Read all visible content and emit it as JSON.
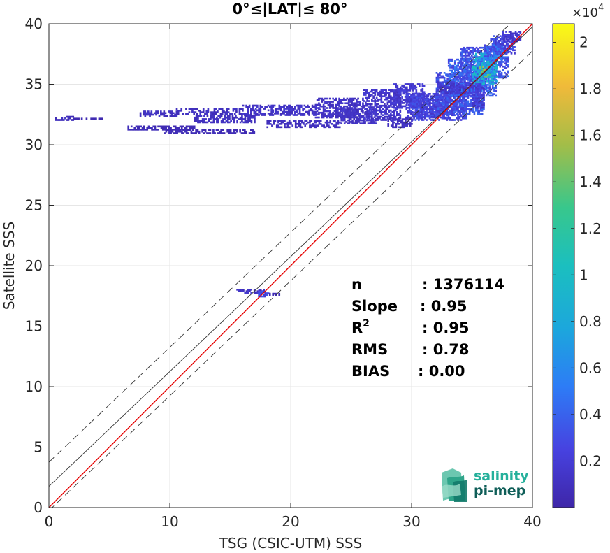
{
  "chart_data": {
    "type": "heatmap",
    "title": "0°≤|LAT|≤ 80°",
    "xlabel": "TSG (CSIC-UTM) SSS",
    "ylabel": "Satellite SSS",
    "xlim": [
      0,
      40
    ],
    "ylim": [
      0,
      40
    ],
    "xticks": [
      "0",
      "10",
      "20",
      "30",
      "40"
    ],
    "yticks": [
      "0",
      "5",
      "10",
      "15",
      "20",
      "25",
      "30",
      "35",
      "40"
    ],
    "grid": true,
    "colorbar": {
      "min": 0,
      "max": 20800,
      "multiplier_label": "×10",
      "multiplier_exp": "4",
      "ticks": [
        "0.2",
        "0.4",
        "0.6",
        "0.8",
        "1",
        "1.2",
        "1.4",
        "1.6",
        "1.8",
        "2"
      ]
    },
    "lines": [
      {
        "role": "one-to-one",
        "color": "#e60000",
        "slope": 1.0,
        "intercept": 0.0,
        "style": "solid"
      },
      {
        "role": "regression",
        "color": "#333333",
        "slope": 0.95,
        "intercept": 1.75,
        "style": "solid"
      },
      {
        "role": "upper-bound",
        "color": "#333333",
        "slope": 0.95,
        "intercept": 3.75,
        "style": "dashed"
      },
      {
        "role": "lower-bound",
        "color": "#333333",
        "slope": 0.95,
        "intercept": -0.25,
        "style": "dashed"
      }
    ],
    "density_regions": [
      {
        "x": [
          0.5,
          2.0
        ],
        "y": [
          32.0,
          32.3
        ],
        "density": 0.04
      },
      {
        "x": [
          2.0,
          4.5
        ],
        "y": [
          32.1,
          32.2
        ],
        "density": 0.02
      },
      {
        "x": [
          7.5,
          10.5
        ],
        "y": [
          32.3,
          32.7
        ],
        "density": 0.05
      },
      {
        "x": [
          10.5,
          16.0
        ],
        "y": [
          32.5,
          33.0
        ],
        "density": 0.05
      },
      {
        "x": [
          12.0,
          17.0
        ],
        "y": [
          31.8,
          32.4
        ],
        "density": 0.05
      },
      {
        "x": [
          16.0,
          22.0
        ],
        "y": [
          32.4,
          33.2
        ],
        "density": 0.06
      },
      {
        "x": [
          18.0,
          24.0
        ],
        "y": [
          31.4,
          32.0
        ],
        "density": 0.05
      },
      {
        "x": [
          22.0,
          26.0
        ],
        "y": [
          32.2,
          33.8
        ],
        "density": 0.06
      },
      {
        "x": [
          24.0,
          27.0
        ],
        "y": [
          31.7,
          33.0
        ],
        "density": 0.06
      },
      {
        "x": [
          9.5,
          17.0
        ],
        "y": [
          30.9,
          31.2
        ],
        "density": 0.03
      },
      {
        "x": [
          6.5,
          12.0
        ],
        "y": [
          31.2,
          31.5
        ],
        "density": 0.03
      },
      {
        "x": [
          26.0,
          29.0
        ],
        "y": [
          32.0,
          34.5
        ],
        "density": 0.07
      },
      {
        "x": [
          28.5,
          31.0
        ],
        "y": [
          33.0,
          35.0
        ],
        "density": 0.08
      },
      {
        "x": [
          29.5,
          33.0
        ],
        "y": [
          32.2,
          34.2
        ],
        "density": 0.1
      },
      {
        "x": [
          30.0,
          34.5
        ],
        "y": [
          32.0,
          34.0
        ],
        "density": 0.12
      },
      {
        "x": [
          32.0,
          36.0
        ],
        "y": [
          32.5,
          36.0
        ],
        "density": 0.15
      },
      {
        "x": [
          33.0,
          37.0
        ],
        "y": [
          34.0,
          37.0
        ],
        "density": 0.18
      },
      {
        "x": [
          34.0,
          38.0
        ],
        "y": [
          35.5,
          38.0
        ],
        "density": 0.15
      },
      {
        "x": [
          35.0,
          37.0
        ],
        "y": [
          35.0,
          37.5
        ],
        "density": 0.35
      },
      {
        "x": [
          35.6,
          36.4
        ],
        "y": [
          35.6,
          36.4
        ],
        "density": 0.55
      },
      {
        "x": [
          36.0,
          36.6
        ],
        "y": [
          36.0,
          36.8
        ],
        "density": 0.42
      },
      {
        "x": [
          36.5,
          38.5
        ],
        "y": [
          37.5,
          39.0
        ],
        "density": 0.12
      },
      {
        "x": [
          37.5,
          39.0
        ],
        "y": [
          38.5,
          39.3
        ],
        "density": 0.08
      },
      {
        "x": [
          35.0,
          36.0
        ],
        "y": [
          33.0,
          35.0
        ],
        "density": 0.1
      },
      {
        "x": [
          36.0,
          37.5
        ],
        "y": [
          37.0,
          38.2
        ],
        "density": 0.2
      },
      {
        "x": [
          32.0,
          35.0
        ],
        "y": [
          34.2,
          35.2
        ],
        "density": 0.08
      },
      {
        "x": [
          28.0,
          30.0
        ],
        "y": [
          31.4,
          32.2
        ],
        "density": 0.05
      },
      {
        "x": [
          15.5,
          17.8
        ],
        "y": [
          17.7,
          18.0
        ],
        "density": 0.06
      },
      {
        "x": [
          17.3,
          18.2
        ],
        "y": [
          17.4,
          17.8
        ],
        "density": 0.12
      },
      {
        "x": [
          18.2,
          19.0
        ],
        "y": [
          17.5,
          17.7
        ],
        "density": 0.03
      }
    ],
    "stats": [
      {
        "label": "n",
        "value": ": 1376114"
      },
      {
        "label": "Slope",
        "value": ": 0.95"
      },
      {
        "label": "R",
        "sup": "2",
        "value": ": 0.95"
      },
      {
        "label": "RMS",
        "value": ": 0.78"
      },
      {
        "label": "BIAS",
        "value": ": 0.00"
      }
    ]
  },
  "logo": {
    "line1": "salinity",
    "line2": "pi-mep"
  }
}
